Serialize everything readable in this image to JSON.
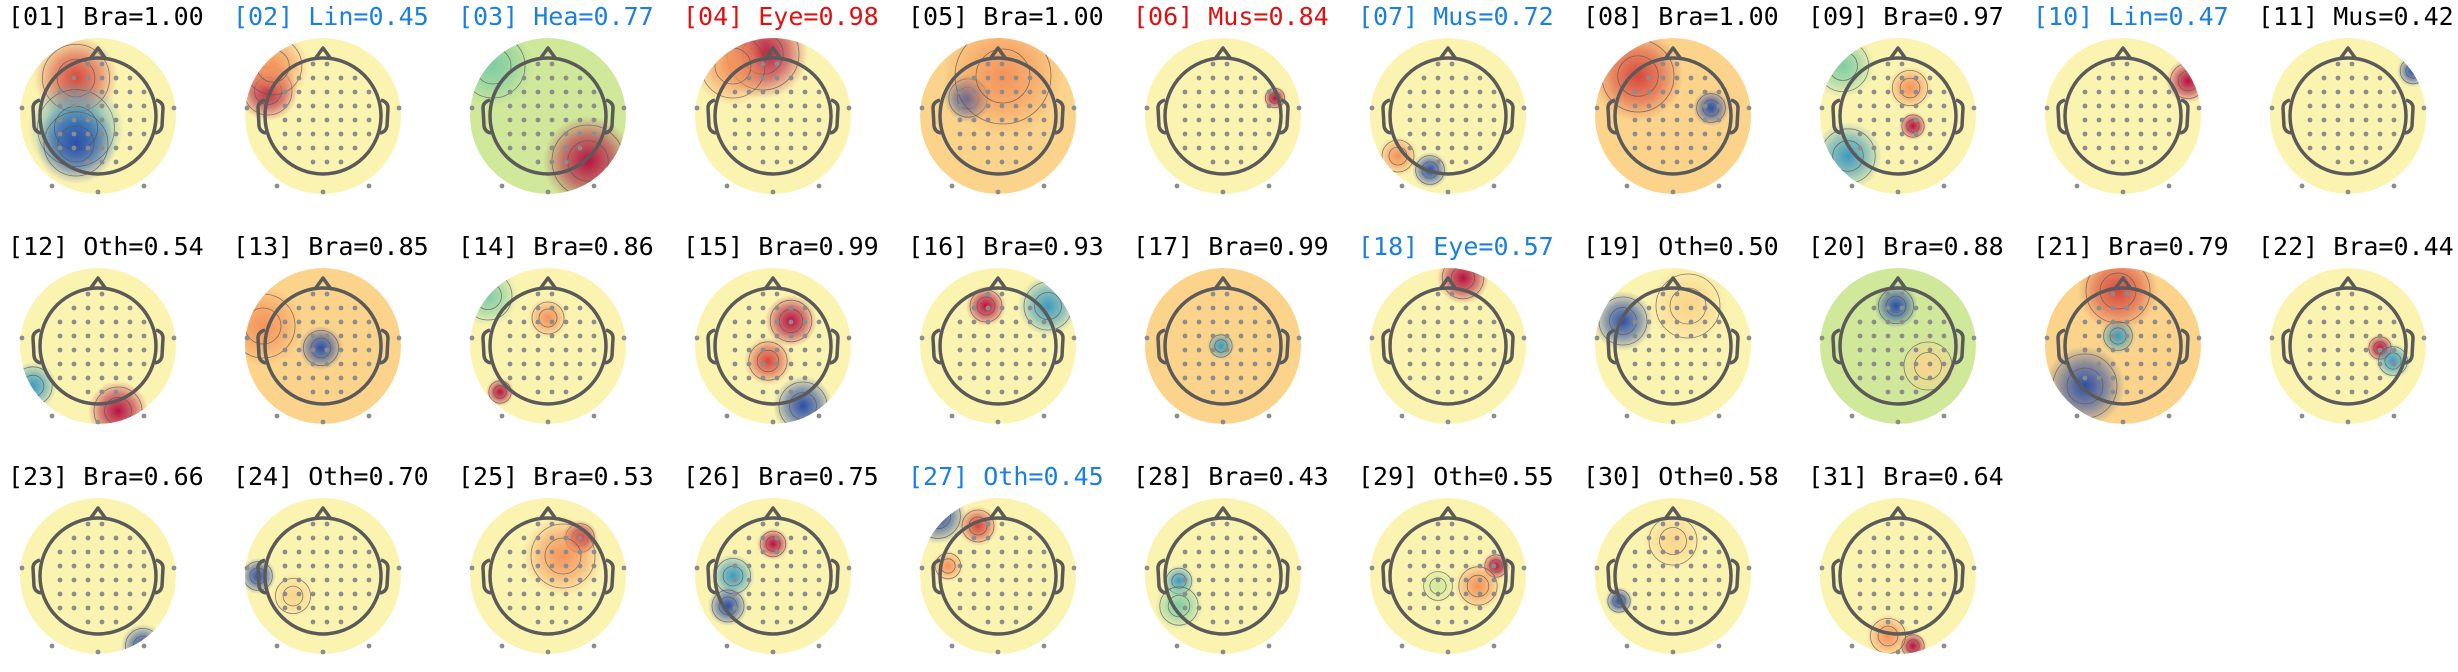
{
  "colors": {
    "label_default": "#000000",
    "label_flagged": "#e01010",
    "label_uncertain": "#1a7fe0",
    "head_outline": "#5a5a5a",
    "electrode": "#8c8c8c",
    "contour": "#555555",
    "colormap": [
      "#2c4fa8",
      "#3d9abf",
      "#7fcca4",
      "#cfe89a",
      "#fbf3b0",
      "#fbd38a",
      "#f4935a",
      "#d7473e",
      "#b5123f"
    ]
  },
  "icon": "head-topomap-icon",
  "components": [
    {
      "label": "[01] Bra=1.00",
      "status": "default"
    },
    {
      "label": "[02] Lin=0.45",
      "status": "uncertain"
    },
    {
      "label": "[03] Hea=0.77",
      "status": "uncertain"
    },
    {
      "label": "[04] Eye=0.98",
      "status": "flagged"
    },
    {
      "label": "[05] Bra=1.00",
      "status": "default"
    },
    {
      "label": "[06] Mus=0.84",
      "status": "flagged"
    },
    {
      "label": "[07] Mus=0.72",
      "status": "uncertain"
    },
    {
      "label": "[08] Bra=1.00",
      "status": "default"
    },
    {
      "label": "[09] Bra=0.97",
      "status": "default"
    },
    {
      "label": "[10] Lin=0.47",
      "status": "uncertain"
    },
    {
      "label": "[11] Mus=0.42",
      "status": "default"
    },
    {
      "label": "[12] Oth=0.54",
      "status": "default"
    },
    {
      "label": "[13] Bra=0.85",
      "status": "default"
    },
    {
      "label": "[14] Bra=0.86",
      "status": "default"
    },
    {
      "label": "[15] Bra=0.99",
      "status": "default"
    },
    {
      "label": "[16] Bra=0.93",
      "status": "default"
    },
    {
      "label": "[17] Bra=0.99",
      "status": "default"
    },
    {
      "label": "[18] Eye=0.57",
      "status": "uncertain"
    },
    {
      "label": "[19] Oth=0.50",
      "status": "default"
    },
    {
      "label": "[20] Bra=0.88",
      "status": "default"
    },
    {
      "label": "[21] Bra=0.79",
      "status": "default"
    },
    {
      "label": "[22] Bra=0.44",
      "status": "default"
    },
    {
      "label": "[23] Bra=0.66",
      "status": "default"
    },
    {
      "label": "[24] Oth=0.70",
      "status": "default"
    },
    {
      "label": "[25] Bra=0.53",
      "status": "default"
    },
    {
      "label": "[26] Bra=0.75",
      "status": "default"
    },
    {
      "label": "[27] Oth=0.45",
      "status": "uncertain"
    },
    {
      "label": "[28] Bra=0.43",
      "status": "default"
    },
    {
      "label": "[29] Oth=0.55",
      "status": "default"
    },
    {
      "label": "[30] Oth=0.58",
      "status": "default"
    },
    {
      "label": "[31] Bra=0.64",
      "status": "default"
    }
  ]
}
